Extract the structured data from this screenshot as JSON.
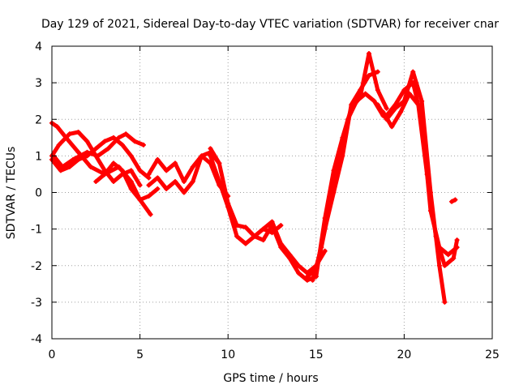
{
  "chart_data": {
    "type": "line",
    "title": "Day 129 of 2021, Sidereal Day-to-day VTEC variation (SDTVAR) for receiver cnar",
    "xlabel": "GPS time / hours",
    "ylabel": "SDTVAR / TECUs",
    "xlim": [
      0,
      25
    ],
    "ylim": [
      -4,
      4
    ],
    "xticks": [
      0,
      5,
      10,
      15,
      20,
      25
    ],
    "yticks": [
      -4,
      -3,
      -2,
      -1,
      0,
      1,
      2,
      3,
      4
    ],
    "xtick_labels": [
      "0",
      "5",
      "10",
      "15",
      "20",
      "25"
    ],
    "ytick_labels": [
      "-4",
      "-3",
      "-2",
      "-1",
      "0",
      "1",
      "2",
      "3",
      "4"
    ],
    "grid": true,
    "series_color": "#ff0000",
    "marker": "+",
    "series": [
      {
        "name": "track-1",
        "x": [
          0.0,
          0.3,
          0.8,
          1.5,
          2.2,
          3.0,
          3.8,
          4.5,
          5.0,
          5.6
        ],
        "y": [
          1.9,
          1.8,
          1.5,
          1.1,
          0.7,
          0.5,
          0.7,
          0.3,
          -0.2,
          -0.6
        ]
      },
      {
        "name": "track-2",
        "x": [
          0.0,
          0.4,
          1.0,
          1.5,
          2.0,
          2.5,
          3.0,
          3.5,
          4.0,
          4.5,
          5.0
        ],
        "y": [
          1.0,
          1.3,
          1.6,
          1.65,
          1.4,
          1.0,
          0.6,
          0.3,
          0.5,
          0.6,
          0.2
        ]
      },
      {
        "name": "track-3",
        "x": [
          0.0,
          0.5,
          1.0,
          1.5,
          2.0,
          2.5,
          3.0,
          3.5,
          4.0,
          4.5,
          5.0,
          5.5
        ],
        "y": [
          0.9,
          0.6,
          0.7,
          0.9,
          1.0,
          1.2,
          1.4,
          1.5,
          1.3,
          1.0,
          0.6,
          0.4
        ]
      },
      {
        "name": "track-4",
        "x": [
          0.1,
          0.6,
          1.2,
          2.0,
          2.6,
          3.2,
          3.8,
          4.2,
          4.7,
          5.2
        ],
        "y": [
          1.0,
          0.7,
          0.9,
          1.1,
          1.0,
          1.2,
          1.5,
          1.6,
          1.4,
          1.3
        ]
      },
      {
        "name": "track-5",
        "x": [
          2.5,
          3.0,
          3.5,
          4.0,
          4.5,
          5.0,
          5.5,
          6.0
        ],
        "y": [
          0.3,
          0.5,
          0.8,
          0.6,
          0.1,
          -0.2,
          -0.1,
          0.1
        ]
      },
      {
        "name": "track-6",
        "x": [
          5.5,
          6.0,
          6.5,
          7.0,
          7.5,
          8.0,
          8.5,
          9.0,
          9.5
        ],
        "y": [
          0.2,
          0.4,
          0.1,
          0.3,
          0.0,
          0.3,
          1.0,
          1.1,
          0.8
        ]
      },
      {
        "name": "track-7",
        "x": [
          5.5,
          6.0,
          6.5,
          7.0,
          7.5,
          8.0,
          8.5,
          9.0,
          9.5,
          10.0
        ],
        "y": [
          0.5,
          0.9,
          0.6,
          0.8,
          0.3,
          0.7,
          1.0,
          0.8,
          0.2,
          -0.1
        ]
      },
      {
        "name": "track-8",
        "x": [
          9.0,
          9.5,
          10.0,
          10.5,
          11.0,
          11.5,
          12.0,
          12.5,
          13.0
        ],
        "y": [
          1.2,
          0.8,
          -0.3,
          -0.9,
          -0.95,
          -1.2,
          -1.0,
          -1.1,
          -0.9
        ]
      },
      {
        "name": "track-9",
        "x": [
          9.0,
          9.5,
          10.0,
          10.5,
          11.0,
          11.5,
          12.0,
          12.5,
          13.0,
          13.5,
          14.0,
          14.5,
          15.0
        ],
        "y": [
          1.0,
          0.3,
          -0.4,
          -1.2,
          -1.4,
          -1.2,
          -1.3,
          -0.9,
          -1.5,
          -1.8,
          -2.2,
          -2.4,
          -2.3
        ]
      },
      {
        "name": "track-10",
        "x": [
          12.0,
          12.5,
          13.0,
          13.5,
          14.0,
          14.5,
          15.0,
          15.5
        ],
        "y": [
          -1.0,
          -0.8,
          -1.4,
          -1.7,
          -2.0,
          -2.2,
          -2.0,
          -1.6
        ]
      },
      {
        "name": "track-11",
        "x": [
          14.5,
          15.0,
          15.5,
          16.0,
          16.5,
          17.0,
          17.5,
          18.0,
          18.5
        ],
        "y": [
          -2.3,
          -2.1,
          -1.0,
          0.0,
          1.0,
          2.4,
          2.8,
          3.2,
          3.3
        ]
      },
      {
        "name": "track-12",
        "x": [
          15.0,
          15.5,
          16.0,
          16.5,
          17.0,
          17.5,
          18.0,
          18.5,
          19.0
        ],
        "y": [
          -2.3,
          -0.7,
          0.6,
          1.5,
          2.3,
          2.6,
          3.8,
          2.8,
          2.3
        ]
      },
      {
        "name": "track-13",
        "x": [
          14.8,
          15.3,
          15.8,
          16.3,
          16.8,
          17.3,
          17.8,
          18.3,
          18.8
        ],
        "y": [
          -2.4,
          -1.5,
          -0.3,
          1.0,
          2.0,
          2.5,
          2.7,
          2.5,
          2.1
        ]
      },
      {
        "name": "track-14",
        "x": [
          18.5,
          19.0,
          19.5,
          20.0,
          20.5,
          21.0,
          21.5,
          22.0,
          22.3
        ],
        "y": [
          2.4,
          2.0,
          2.3,
          2.5,
          3.3,
          2.5,
          0.0,
          -2.0,
          -3.0
        ]
      },
      {
        "name": "track-15",
        "x": [
          19.0,
          19.5,
          20.0,
          20.5,
          21.0,
          21.5,
          22.0,
          22.5,
          23.0
        ],
        "y": [
          2.1,
          2.4,
          2.8,
          3.0,
          2.0,
          -0.5,
          -1.5,
          -1.7,
          -1.5
        ]
      },
      {
        "name": "track-16",
        "x": [
          18.8,
          19.3,
          19.8,
          20.3,
          20.8,
          21.3,
          21.8,
          22.3,
          22.8,
          23.0
        ],
        "y": [
          2.2,
          1.8,
          2.2,
          2.7,
          2.4,
          0.5,
          -1.2,
          -2.0,
          -1.8,
          -1.3
        ]
      },
      {
        "name": "track-17",
        "x": [
          22.7,
          22.9
        ],
        "y": [
          -0.25,
          -0.2
        ]
      }
    ]
  }
}
